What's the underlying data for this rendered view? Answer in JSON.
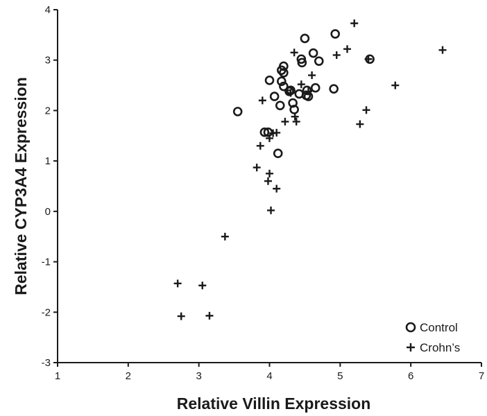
{
  "chart_data": {
    "type": "scatter",
    "title": "",
    "xlabel": "Relative Villin Expression",
    "ylabel": "Relative CYP3A4 Expression",
    "xlim": [
      1,
      7
    ],
    "ylim": [
      -3,
      4
    ],
    "x_ticks": [
      "1",
      "2",
      "3",
      "4",
      "5",
      "6",
      "7"
    ],
    "y_ticks": [
      "-3",
      "-2",
      "-1",
      "0",
      "1",
      "2",
      "3",
      "4"
    ],
    "grid": false,
    "legend_position": "bottom-right",
    "series": [
      {
        "name": "Control",
        "marker": "open-circle",
        "color": "#1a1a1a",
        "points": [
          [
            3.55,
            1.98
          ],
          [
            3.93,
            1.57
          ],
          [
            3.98,
            1.57
          ],
          [
            4.12,
            1.15
          ],
          [
            4.0,
            2.6
          ],
          [
            4.07,
            2.28
          ],
          [
            4.15,
            2.1
          ],
          [
            4.17,
            2.58
          ],
          [
            4.17,
            2.8
          ],
          [
            4.2,
            2.88
          ],
          [
            4.2,
            2.75
          ],
          [
            4.2,
            2.48
          ],
          [
            4.28,
            2.38
          ],
          [
            4.3,
            2.4
          ],
          [
            4.33,
            2.15
          ],
          [
            4.35,
            2.02
          ],
          [
            4.42,
            2.33
          ],
          [
            4.45,
            3.02
          ],
          [
            4.46,
            2.95
          ],
          [
            4.5,
            3.43
          ],
          [
            4.52,
            2.3
          ],
          [
            4.53,
            2.4
          ],
          [
            4.55,
            2.28
          ],
          [
            4.62,
            3.14
          ],
          [
            4.65,
            2.45
          ],
          [
            4.7,
            2.98
          ],
          [
            4.91,
            2.43
          ],
          [
            4.93,
            3.52
          ],
          [
            5.42,
            3.02
          ]
        ]
      },
      {
        "name": "Crohn’s",
        "marker": "plus",
        "color": "#1a1a1a",
        "points": [
          [
            2.7,
            -1.43
          ],
          [
            2.75,
            -2.08
          ],
          [
            3.05,
            -1.47
          ],
          [
            3.15,
            -2.07
          ],
          [
            3.37,
            -0.5
          ],
          [
            3.82,
            0.87
          ],
          [
            3.87,
            1.3
          ],
          [
            3.9,
            2.2
          ],
          [
            3.98,
            0.6
          ],
          [
            4.0,
            0.75
          ],
          [
            4.02,
            0.02
          ],
          [
            4.0,
            1.45
          ],
          [
            4.05,
            1.55
          ],
          [
            4.1,
            0.45
          ],
          [
            4.1,
            1.56
          ],
          [
            4.22,
            1.78
          ],
          [
            4.25,
            2.4
          ],
          [
            4.3,
            2.35
          ],
          [
            4.35,
            3.15
          ],
          [
            4.36,
            1.88
          ],
          [
            4.38,
            1.78
          ],
          [
            4.45,
            2.52
          ],
          [
            4.55,
            2.38
          ],
          [
            4.6,
            2.7
          ],
          [
            4.95,
            3.1
          ],
          [
            5.1,
            3.22
          ],
          [
            5.2,
            3.73
          ],
          [
            5.28,
            1.73
          ],
          [
            5.37,
            2.01
          ],
          [
            5.4,
            3.02
          ],
          [
            5.78,
            2.5
          ],
          [
            6.45,
            3.2
          ]
        ]
      }
    ]
  }
}
